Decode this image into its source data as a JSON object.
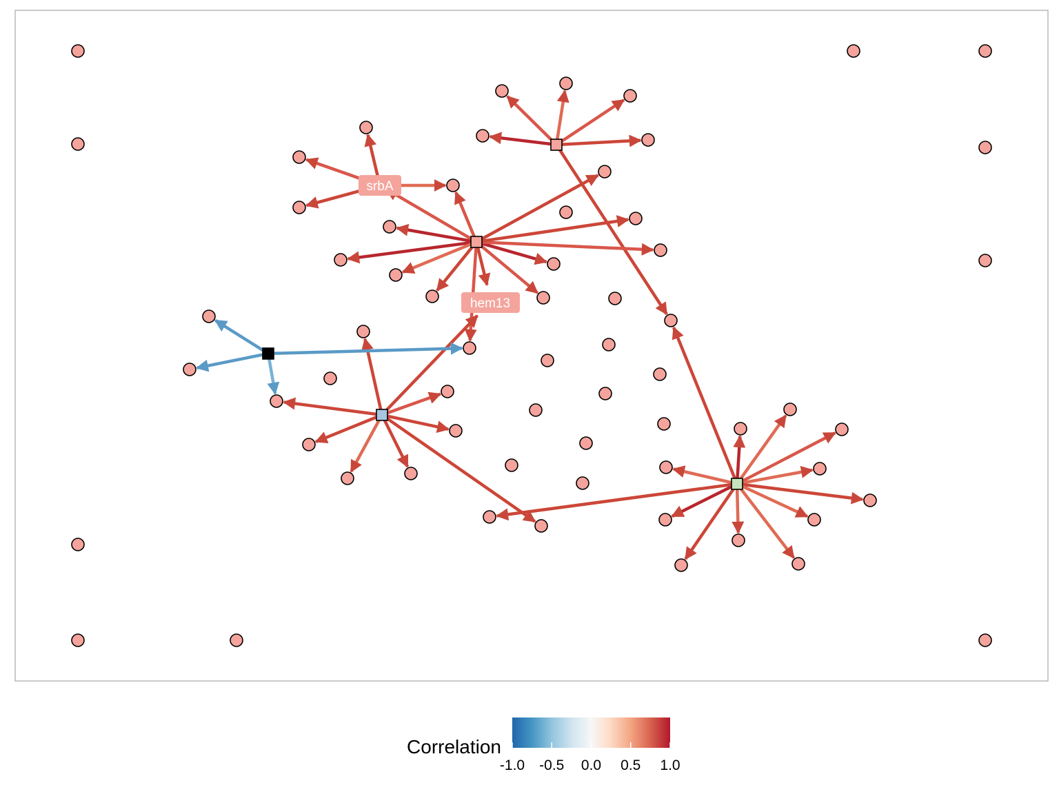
{
  "legend": {
    "title": "Correlation",
    "ticks": [
      {
        "value": -1.0,
        "label": "-1.0"
      },
      {
        "value": -0.5,
        "label": "-0.5"
      },
      {
        "value": 0.0,
        "label": "0.0"
      },
      {
        "value": 0.5,
        "label": "0.5"
      },
      {
        "value": 1.0,
        "label": "1.0"
      }
    ],
    "scale_colors": [
      "#2166ac",
      "#4393c3",
      "#92c5de",
      "#d1e5f0",
      "#f7f7f7",
      "#fddbc7",
      "#f4a582",
      "#d6604d",
      "#b2182b"
    ]
  },
  "colors": {
    "node_fill": "#f4a49c",
    "node_stroke": "#000000",
    "positive_edge": "#d04a3a",
    "negative_edge": "#5a9ac6"
  },
  "labels": {
    "srbA": "srbA",
    "hem13": "hem13"
  }
}
